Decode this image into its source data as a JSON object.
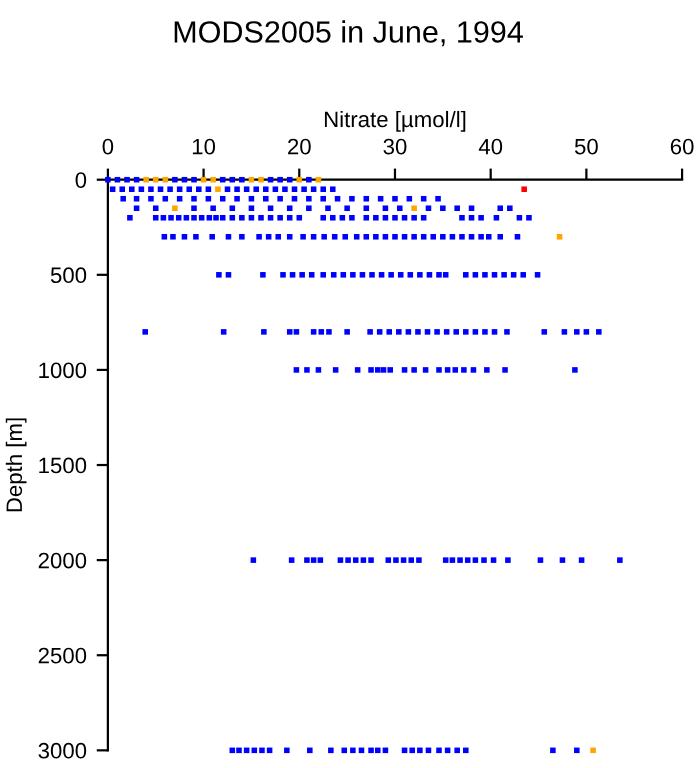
{
  "chart_data": {
    "type": "scatter",
    "title": "MODS2005 in June, 1994",
    "xlabel": "Nitrate [µmol/l]",
    "ylabel": "Depth [m]",
    "xlim": [
      0,
      60
    ],
    "xticks": [
      0,
      10,
      20,
      30,
      40,
      50,
      60
    ],
    "ylim": [
      3000,
      0
    ],
    "yticks": [
      0,
      500,
      1000,
      1500,
      2000,
      2500,
      3000
    ],
    "grid": false,
    "legend": false,
    "marker": "square",
    "series": [
      {
        "color": "#0000ff",
        "x": [
          0,
          1,
          2,
          3,
          7,
          8,
          9,
          12,
          13,
          14,
          17,
          18,
          19,
          21
        ],
        "values": [
          0,
          0,
          0,
          0,
          0,
          0,
          0,
          0,
          0,
          0,
          0,
          0,
          0,
          0
        ]
      },
      {
        "color": "#0000ff",
        "x": [
          0.5,
          1.5,
          2.5,
          3.5,
          4.5,
          5.5,
          6.5,
          7.5,
          8.5,
          9.5,
          10.5,
          12.5,
          13.5,
          14.5,
          15.5,
          16.5,
          17.5,
          18.5,
          19.5,
          20.5,
          21.5,
          22.5,
          23.5
        ],
        "values": [
          50,
          50,
          50,
          50,
          50,
          50,
          50,
          50,
          50,
          50,
          50,
          50,
          50,
          50,
          50,
          50,
          50,
          50,
          50,
          50,
          50,
          50,
          50
        ]
      },
      {
        "color": "#0000ff",
        "x": [
          1.6,
          3,
          4.5,
          6,
          7.5,
          9,
          10.5,
          12,
          13.5,
          15,
          16.5,
          18,
          19.5,
          21,
          22.5,
          24,
          25.5,
          27,
          28.5,
          30,
          31.5,
          33,
          34.5
        ],
        "values": [
          100,
          100,
          100,
          100,
          100,
          100,
          100,
          100,
          100,
          100,
          100,
          100,
          100,
          100,
          100,
          100,
          100,
          100,
          100,
          100,
          100,
          100,
          100
        ]
      },
      {
        "color": "#0000ff",
        "x": [
          3,
          5,
          9,
          11,
          13,
          15,
          17,
          19,
          21,
          23,
          25,
          27,
          29,
          30.5,
          33.5,
          35,
          36.5,
          38,
          41,
          42
        ],
        "values": [
          150,
          150,
          150,
          150,
          150,
          150,
          150,
          150,
          150,
          150,
          150,
          150,
          150,
          150,
          150,
          150,
          150,
          150,
          150,
          150
        ]
      },
      {
        "color": "#0000ff",
        "x": [
          2.3,
          5,
          5.8,
          6.6,
          7.4,
          8.2,
          9,
          9.8,
          10.6,
          11.3,
          12,
          13,
          14,
          15,
          16,
          17,
          18,
          19,
          20,
          22.5,
          23.5,
          24.5,
          25.5,
          27,
          28,
          29,
          30,
          31,
          32,
          33,
          37,
          38,
          39,
          40.6,
          43,
          44
        ],
        "values": [
          200,
          200,
          200,
          200,
          200,
          200,
          200,
          200,
          200,
          200,
          200,
          200,
          200,
          200,
          200,
          200,
          200,
          200,
          200,
          200,
          200,
          200,
          200,
          200,
          200,
          200,
          200,
          200,
          200,
          200,
          200,
          200,
          200,
          200,
          200,
          200
        ]
      },
      {
        "color": "#0000ff",
        "x": [
          5.9,
          6.8,
          8,
          9.2,
          10.9,
          12.6,
          14,
          15.8,
          16.8,
          17.8,
          19,
          20.4,
          21.5,
          22.6,
          23.7,
          24.8,
          26,
          27,
          28,
          29,
          30,
          31,
          32,
          33,
          34,
          35,
          36,
          37,
          38,
          39,
          39.8,
          41,
          42.8
        ],
        "values": [
          300,
          300,
          300,
          300,
          300,
          300,
          300,
          300,
          300,
          300,
          300,
          300,
          300,
          300,
          300,
          300,
          300,
          300,
          300,
          300,
          300,
          300,
          300,
          300,
          300,
          300,
          300,
          300,
          300,
          300,
          300,
          300,
          300
        ]
      },
      {
        "color": "#0000ff",
        "x": [
          11.6,
          12.6,
          16.2,
          18.3,
          19.3,
          20.3,
          21.3,
          22.5,
          23.6,
          24.6,
          25.6,
          26.6,
          27.6,
          28.6,
          29.6,
          30.6,
          31.6,
          32.6,
          33.6,
          34.6,
          35.3,
          37.4,
          38.4,
          39.4,
          40.4,
          41.4,
          42.4,
          43.4,
          44.9
        ],
        "values": [
          500,
          500,
          500,
          500,
          500,
          500,
          500,
          500,
          500,
          500,
          500,
          500,
          500,
          500,
          500,
          500,
          500,
          500,
          500,
          500,
          500,
          500,
          500,
          500,
          500,
          500,
          500,
          500,
          500
        ]
      },
      {
        "color": "#0000ff",
        "x": [
          3.9,
          12.1,
          16.3,
          19,
          19.7,
          21.5,
          22.3,
          23.1,
          25,
          27.4,
          28.4,
          29.4,
          30.4,
          31.4,
          32.4,
          33.4,
          34.4,
          35.4,
          36.4,
          37.4,
          38.4,
          39.4,
          40.4,
          41.7,
          45.6,
          47.7,
          49,
          50,
          51.3
        ],
        "values": [
          800,
          800,
          800,
          800,
          800,
          800,
          800,
          800,
          800,
          800,
          800,
          800,
          800,
          800,
          800,
          800,
          800,
          800,
          800,
          800,
          800,
          800,
          800,
          800,
          800,
          800,
          800,
          800,
          800
        ]
      },
      {
        "color": "#0000ff",
        "x": [
          19.7,
          20.8,
          22,
          23.8,
          26.1,
          27.5,
          28.2,
          28.8,
          29.5,
          31,
          32,
          33.2,
          34.6,
          35.5,
          36.3,
          37.2,
          38.2,
          39.6,
          41.5,
          48.8
        ],
        "values": [
          1000,
          1000,
          1000,
          1000,
          1000,
          1000,
          1000,
          1000,
          1000,
          1000,
          1000,
          1000,
          1000,
          1000,
          1000,
          1000,
          1000,
          1000,
          1000,
          1000
        ]
      },
      {
        "color": "#0000ff",
        "x": [
          15.2,
          19.2,
          20.8,
          21.5,
          22.2,
          24.3,
          25.1,
          25.9,
          26.7,
          27.5,
          29.3,
          30.1,
          30.9,
          31.7,
          32.5,
          35.3,
          36,
          36.8,
          37.6,
          38.4,
          39.3,
          40.3,
          41.8,
          45.2,
          47.5,
          49.5,
          53.5
        ],
        "values": [
          2000,
          2000,
          2000,
          2000,
          2000,
          2000,
          2000,
          2000,
          2000,
          2000,
          2000,
          2000,
          2000,
          2000,
          2000,
          2000,
          2000,
          2000,
          2000,
          2000,
          2000,
          2000,
          2000,
          2000,
          2000,
          2000,
          2000
        ]
      },
      {
        "color": "#0000ff",
        "x": [
          13,
          13.7,
          14.5,
          15.3,
          16.1,
          16.9,
          18.7,
          21.1,
          23.3,
          24.7,
          25.6,
          26.5,
          27.5,
          28.2,
          29,
          31,
          31.8,
          32.6,
          33.5,
          34.6,
          35.5,
          36.5,
          37.4,
          46.5,
          49
        ],
        "values": [
          3000,
          3000,
          3000,
          3000,
          3000,
          3000,
          3000,
          3000,
          3000,
          3000,
          3000,
          3000,
          3000,
          3000,
          3000,
          3000,
          3000,
          3000,
          3000,
          3000,
          3000,
          3000,
          3000,
          3000,
          3000
        ]
      },
      {
        "color": "#ffa500",
        "x": [
          4,
          5,
          6,
          10,
          11,
          11.5,
          15,
          16,
          20,
          22,
          7,
          32,
          47.2,
          50.7
        ],
        "values": [
          0,
          0,
          0,
          0,
          0,
          50,
          0,
          0,
          0,
          0,
          150,
          150,
          300,
          3000
        ]
      },
      {
        "color": "#ff0000",
        "x": [
          43.5
        ],
        "values": [
          50
        ]
      }
    ]
  }
}
